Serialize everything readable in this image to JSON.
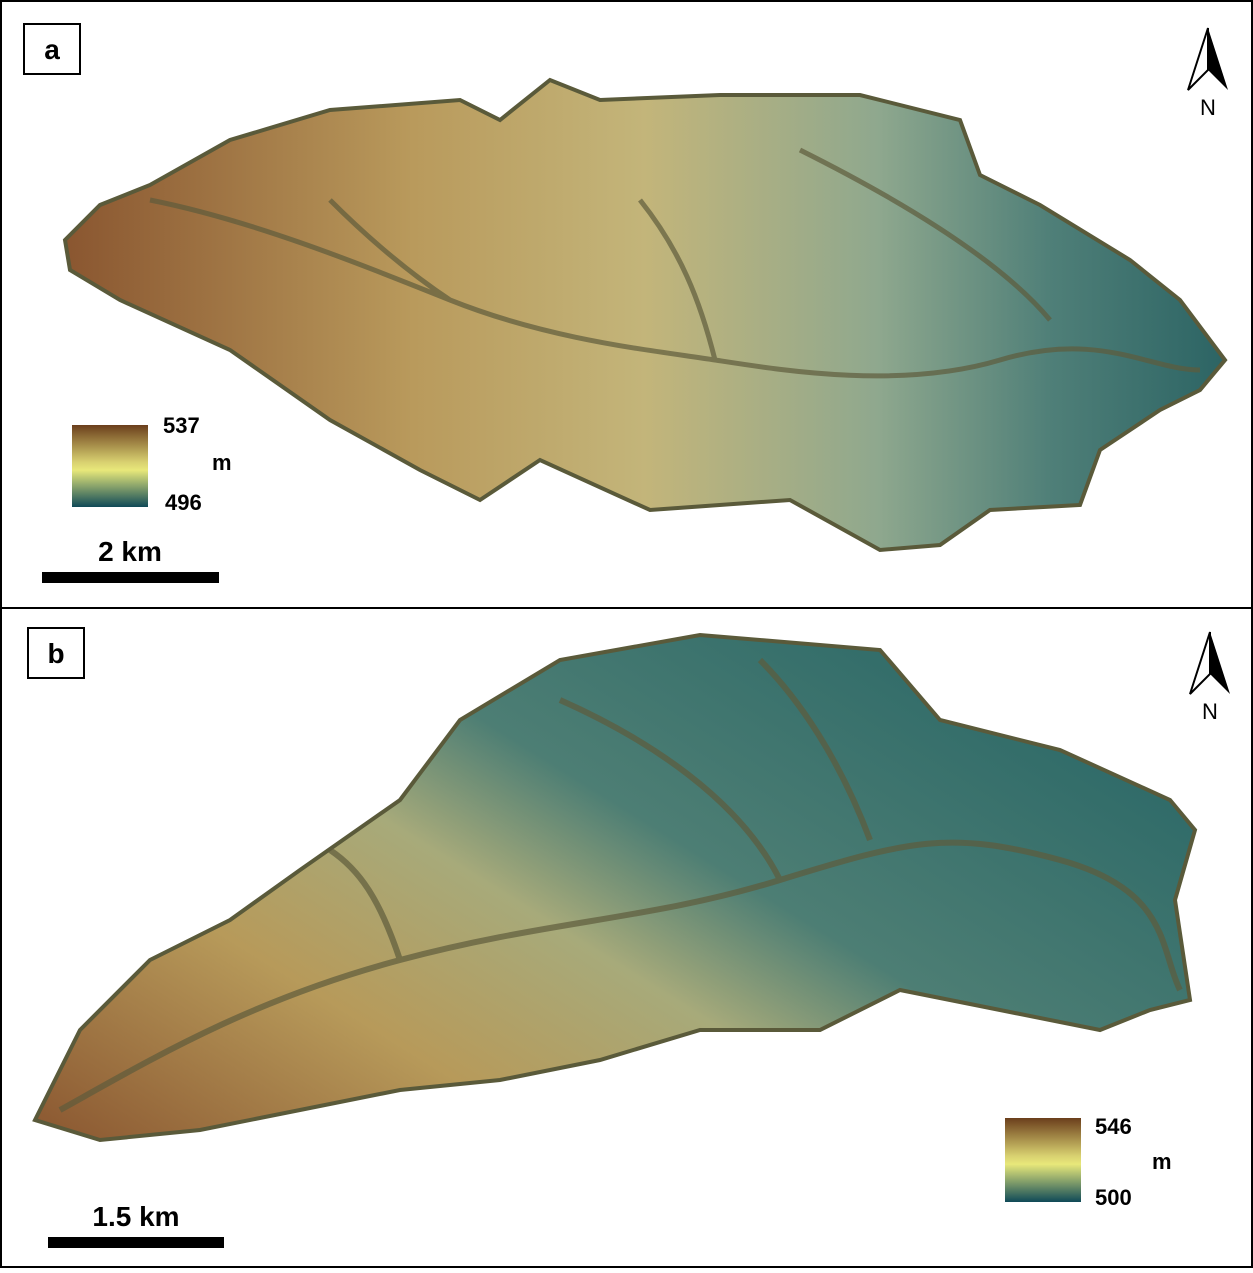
{
  "panels": [
    {
      "label": "a",
      "north": "N",
      "legend": {
        "max": 537,
        "min": 496,
        "unit": "m"
      },
      "scale": "2 km"
    },
    {
      "label": "b",
      "north": "N",
      "legend": {
        "max": 546,
        "min": 500,
        "unit": "m"
      },
      "scale": "1.5 km"
    }
  ]
}
